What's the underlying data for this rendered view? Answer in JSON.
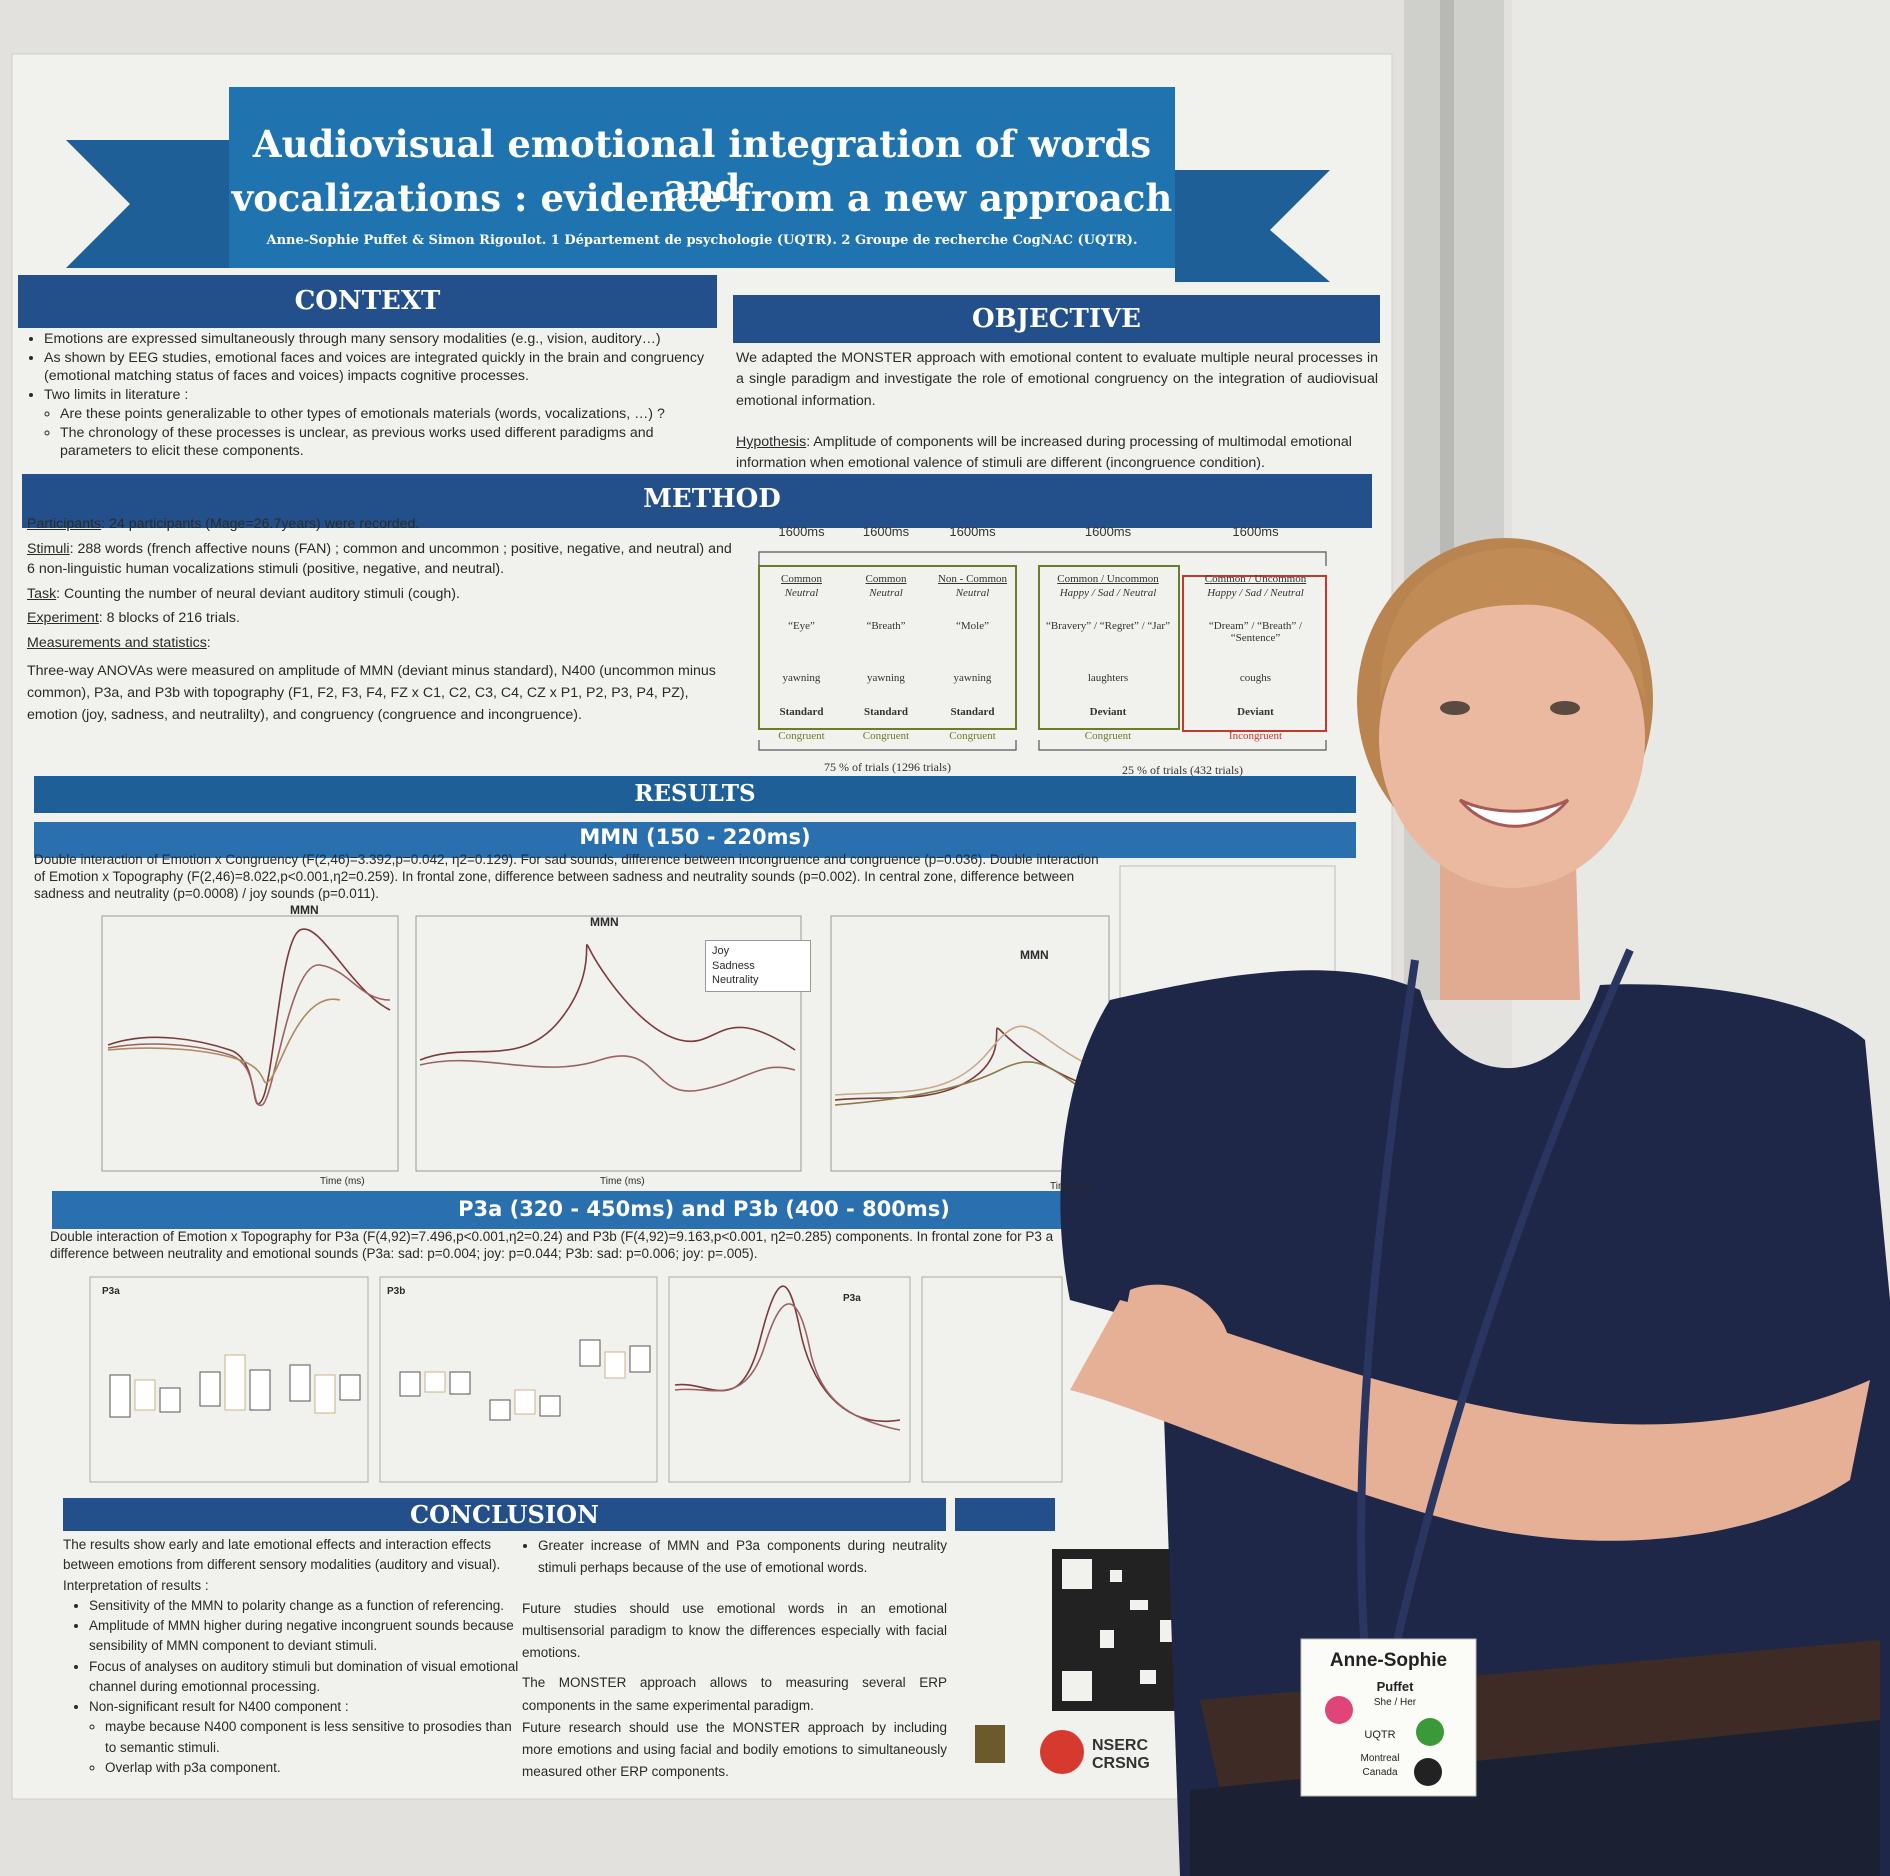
{
  "poster": {
    "title": [
      "Audiovisual emotional integration of words and",
      "vocalizations : evidence from a new approach"
    ],
    "authors": "Anne-Sophie Puffet & Simon Rigoulot. 1 Département de psychologie (UQTR). 2 Groupe de recherche CogNAC (UQTR).",
    "context": {
      "heading": "CONTEXT",
      "bullets": [
        "Emotions are expressed simultaneously through many sensory modalities (e.g., vision, auditory…)",
        "As shown by EEG studies, emotional faces and voices are integrated quickly in the brain and congruency (emotional matching status of faces and voices) impacts cognitive processes."
      ],
      "limits": {
        "text": "Two limits in literature :",
        "sub": [
          "Are these points generalizable to other types of emotionals materials (words, vocalizations, …) ?",
          "The chronology of these processes is unclear, as previous works used different paradigms and parameters to elicit these components."
        ]
      }
    },
    "objective": {
      "heading": "OBJECTIVE",
      "text": "We adapted the MONSTER approach with emotional content to evaluate multiple neural processes in a single paradigm and investigate the role of emotional congruency on the integration of audiovisual emotional information.",
      "hypothesis_label": "Hypothesis",
      "hypothesis": ": Amplitude of components will be increased during processing of multimodal emotional information when emotional valence of stimuli are different (incongruence condition)."
    },
    "method": {
      "heading": "METHOD",
      "items": [
        {
          "label": "Participants",
          "text": ": 24 participants (Mage=26.7years) were recorded."
        },
        {
          "label": "Stimuli",
          "text": ": 288 words (french affective nouns (FAN) ; common and uncommon ; positive, negative, and neutral) and 6 non-linguistic human vocalizations stimuli (positive, negative, and neutral)."
        },
        {
          "label": "Task",
          "text": ": Counting the number of neural deviant auditory stimuli (cough)."
        },
        {
          "label": "Experiment",
          "text": ": 8 blocks of 216 trials."
        },
        {
          "label": "Measurements and statistics",
          "text": ":"
        }
      ],
      "analysis": "Three-way ANOVAs were measured on amplitude of MMN (deviant minus standard), N400 (uncommon minus common), P3a, and P3b with topography (F1, F2, F3, F4, FZ x C1, C2, C3, C4, CZ x P1, P2, P3, P4, PZ), emotion (joy, sadness, and neutralilty), and congruency (congruence and incongruence).",
      "paradigm": {
        "columns": [
          {
            "duration": "1600ms",
            "type": "Common",
            "emotion": "Neutral",
            "word": "“Eye”",
            "sound": "yawning",
            "role": "Standard",
            "condition": "Congruent"
          },
          {
            "duration": "1600ms",
            "type": "Common",
            "emotion": "Neutral",
            "word": "“Breath”",
            "sound": "yawning",
            "role": "Standard",
            "condition": "Congruent"
          },
          {
            "duration": "1600ms",
            "type": "Non - Common",
            "emotion": "Neutral",
            "word": "“Mole”",
            "sound": "yawning",
            "role": "Standard",
            "condition": "Congruent"
          },
          {
            "duration": "1600ms",
            "type": "Common / Uncommon",
            "emotion": "Happy / Sad / Neutral",
            "word": "“Bravery” / “Regret” / “Jar”",
            "sound": "laughters",
            "role": "Deviant",
            "condition": "Congruent"
          },
          {
            "duration": "1600ms",
            "type": "Common / Uncommon",
            "emotion": "Happy / Sad / Neutral",
            "word": "“Dream” / “Breath” / “Sentence”",
            "sound": "coughs",
            "role": "Deviant",
            "condition": "Incongruent"
          }
        ],
        "standard_share": "75 % of trials (1296 trials)",
        "deviant_share": "25 % of trials (432 trials)"
      }
    },
    "results": {
      "heading": "RESULTS",
      "mmn": {
        "heading": "MMN (150 - 220ms)",
        "text": "Double interaction of Emotion x Congruency (F(2,46)=3.392,p=0.042, η2=0.129). For sad sounds, difference between incongruence and congruence (p=0.036). Double interaction of Emotion x Topography (F(2,46)=8.022,p<0.001,η2=0.259). In frontal zone, difference between sadness and neutrality sounds (p=0.002). In central zone, difference between sadness and neutrality (p=0.0008) / joy sounds (p=0.011).",
        "chart_titles": [
          "MMN",
          "MMN",
          "MMN"
        ],
        "legend": [
          "Joy",
          "Sadness",
          "Neutrality"
        ],
        "x_label": "Time (ms)"
      },
      "p3": {
        "heading": "P3a (320 - 450ms) and P3b (400 - 800ms)",
        "text": "Double interaction of Emotion x Topography for P3a (F(4,92)=7.496,p<0.001,η2=0.24) and P3b (F(4,92)=9.163,p<0.001, η2=0.285) components. In frontal zone for P3 a difference between neutrality and emotional sounds (P3a: sad: p=0.004; joy: p=0.044; P3b: sad: p=0.006; joy: p=.005).",
        "panels": [
          "P3a",
          "P3b",
          "P3a"
        ]
      }
    },
    "conclusion": {
      "heading": "CONCLUSION",
      "intro": "The results show early and late emotional effects and interaction effects between emotions from different sensory modalities (auditory and visual).",
      "interpretation": "Interpretation of results :",
      "bullets": [
        "Sensitivity of the MMN to polarity change as a function of referencing.",
        "Amplitude of MMN higher during negative incongruent sounds because sensibility of MMN component to deviant stimuli.",
        "Focus of analyses on auditory stimuli but domination of visual emotional channel during emotionnal processing."
      ],
      "n400": {
        "text": "Non-significant result for N400 component :",
        "sub": [
          "maybe because N400 component is less sensitive to prosodies than to semantic stimuli.",
          "Overlap with p3a component."
        ]
      },
      "right_bullet": "Greater increase of MMN and P3a components during neutrality stimuli perhaps because of the use of emotional words.",
      "paragraphs": [
        "Future studies should use emotional words in an emotional multisensorial paradigm to know the differences especially with facial emotions.",
        "The MONSTER approach allows to measuring several ERP components in the same experimental paradigm.",
        "Future research should use the MONSTER approach by including more emotions and using facial and bodily emotions to simultaneously measured other ERP components."
      ]
    },
    "logos": [
      "NSERC",
      "CRSNG"
    ]
  },
  "badge": {
    "name": "Anne-Sophie",
    "surname": "Puffet",
    "pronouns": "She / Her",
    "affiliation": "UQTR",
    "location": [
      "Montreal",
      "Canada"
    ]
  }
}
